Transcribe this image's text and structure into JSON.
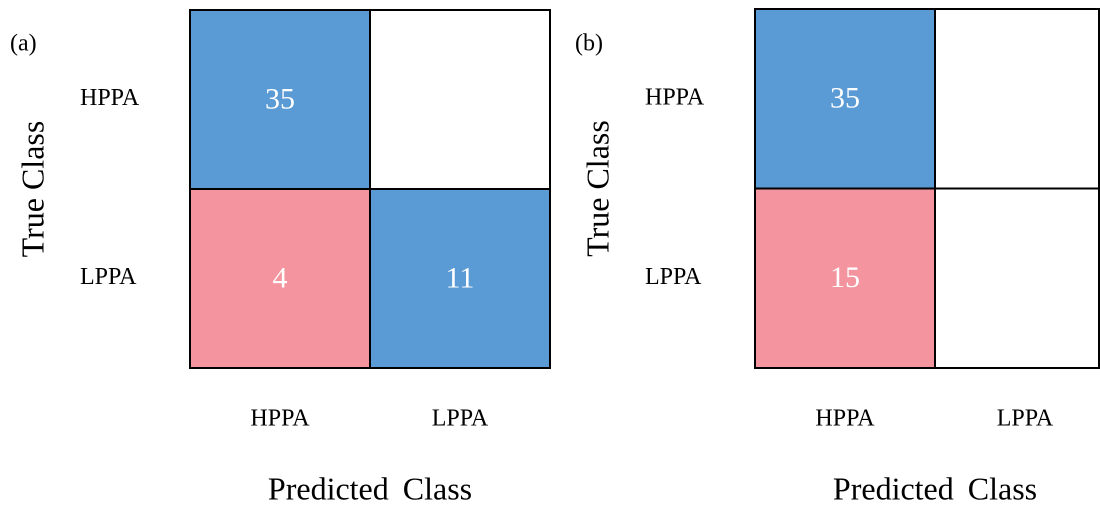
{
  "chart_data": [
    {
      "type": "confusion_matrix",
      "panel_label": "(a)",
      "xlabel": "Predicted Class",
      "ylabel": "True Class",
      "x_categories": [
        "HPPA",
        "LPPA"
      ],
      "y_categories": [
        "HPPA",
        "LPPA"
      ],
      "values": [
        [
          35,
          null
        ],
        [
          4,
          11
        ]
      ],
      "correct_color": "#5b9bd5",
      "error_color": "#f4949f"
    },
    {
      "type": "confusion_matrix",
      "panel_label": "(b)",
      "xlabel": "Predicted Class",
      "ylabel": "True Class",
      "x_categories": [
        "HPPA",
        "LPPA"
      ],
      "y_categories": [
        "HPPA",
        "LPPA"
      ],
      "values": [
        [
          35,
          null
        ],
        [
          15,
          null
        ]
      ],
      "correct_color": "#5b9bd5",
      "error_color": "#f4949f"
    }
  ]
}
